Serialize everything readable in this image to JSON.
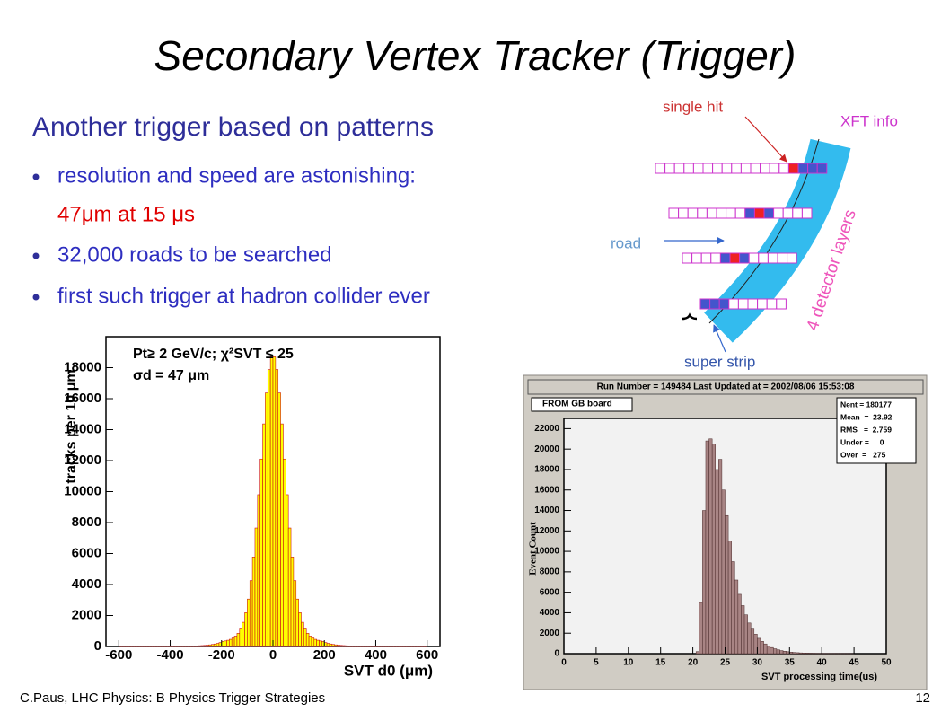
{
  "title": "Secondary Vertex Tracker (Trigger)",
  "heading": "Another trigger based on patterns",
  "bullets": [
    {
      "text": "resolution and speed are astonishing:",
      "highlight": "47μm at 15 μs"
    },
    {
      "text": "32,000 roads to be searched"
    },
    {
      "text": "first such trigger at hadron collider ever"
    }
  ],
  "diagram": {
    "labels": {
      "single_hit": "single hit",
      "xft_info": "XFT info",
      "road": "road",
      "layers": "4 detector layers",
      "super_strip": "super strip"
    }
  },
  "chart_data": [
    {
      "type": "histogram",
      "annotations": [
        "Pt≥ 2 GeV/c; χ²SVT ≤ 25",
        "σd = 47 μm"
      ],
      "x_label": "SVT d0 (μm)",
      "y_label": "tracks per 10 μm",
      "bins": [
        -600,
        -590,
        -580,
        -570,
        -560,
        -550,
        -540,
        -530,
        -520,
        -510,
        -500,
        -490,
        -480,
        -470,
        -460,
        -450,
        -440,
        -430,
        -420,
        -410,
        -400,
        -390,
        -380,
        -370,
        -360,
        -350,
        -340,
        -330,
        -320,
        -310,
        -300,
        -290,
        -280,
        -270,
        -260,
        -250,
        -240,
        -230,
        -220,
        -210,
        -200,
        -190,
        -180,
        -170,
        -160,
        -150,
        -140,
        -130,
        -120,
        -110,
        -100,
        -90,
        -80,
        -70,
        -60,
        -50,
        -40,
        -30,
        -20,
        -10,
        0,
        10,
        20,
        30,
        40,
        50,
        60,
        70,
        80,
        90,
        100,
        110,
        120,
        130,
        140,
        150,
        160,
        170,
        180,
        190,
        200,
        210,
        220,
        230,
        240,
        250,
        260,
        270,
        280,
        290,
        300,
        310,
        320,
        330,
        340,
        350,
        360,
        370,
        380,
        390,
        400,
        410,
        420,
        430,
        440,
        450,
        460,
        470,
        480,
        490,
        500,
        510,
        520,
        530,
        540,
        550,
        560,
        570,
        580,
        590,
        600
      ],
      "counts": [
        6,
        6,
        7,
        7,
        7,
        8,
        8,
        8,
        9,
        9,
        9,
        10,
        10,
        11,
        11,
        12,
        12,
        13,
        14,
        15,
        16,
        17,
        18,
        19,
        21,
        23,
        25,
        28,
        31,
        35,
        40,
        48,
        58,
        70,
        85,
        105,
        130,
        160,
        200,
        250,
        323,
        360,
        400,
        460,
        545,
        670,
        850,
        1130,
        1560,
        2180,
        3060,
        4250,
        5780,
        7650,
        9800,
        12100,
        14370,
        16370,
        17880,
        18700,
        18700,
        17880,
        16370,
        14370,
        12100,
        9800,
        7650,
        5780,
        4250,
        3060,
        2180,
        1560,
        1130,
        850,
        670,
        545,
        460,
        400,
        360,
        323,
        250,
        200,
        160,
        130,
        105,
        85,
        70,
        58,
        48,
        40,
        35,
        31,
        28,
        25,
        23,
        21,
        19,
        18,
        17,
        16,
        15,
        14,
        13,
        12,
        12,
        11,
        11,
        10,
        10,
        9,
        9,
        9,
        8,
        8,
        8,
        7,
        7,
        7,
        6,
        6
      ],
      "color": "#ffff00",
      "edge_color": "#cc1111",
      "xlim": [
        -650,
        650
      ],
      "ylim": [
        0,
        20000
      ],
      "xticks": [
        -600,
        -400,
        -200,
        0,
        200,
        400,
        600
      ],
      "yticks": [
        0,
        2000,
        4000,
        6000,
        8000,
        10000,
        12000,
        14000,
        16000,
        18000
      ]
    },
    {
      "type": "histogram",
      "title": "Run Number = 149484   Last Updated at = 2002/08/06 15:53:08",
      "legend_box": "FROM GB board",
      "stats": [
        "Nent = 180177",
        "Mean  =  23.92",
        "RMS   =  2.759",
        "Under =     0",
        "Over  =   275"
      ],
      "x_label": "SVT processing time(us)",
      "y_label": "Event Count",
      "bins": [
        20,
        20.5,
        21,
        21.5,
        22,
        22.5,
        23,
        23.5,
        24,
        24.5,
        25,
        25.5,
        26,
        26.5,
        27,
        27.5,
        28,
        28.5,
        29,
        29.5,
        30,
        30.5,
        31,
        31.5,
        32,
        32.5,
        33,
        33.5,
        34,
        34.5,
        35,
        35.5,
        36,
        36.5,
        37,
        37.5,
        38,
        38.5,
        39,
        39.5,
        40,
        40.5,
        41,
        41.5,
        42,
        42.5,
        43,
        43.5,
        44,
        44.5,
        45
      ],
      "counts": [
        0,
        200,
        5000,
        14000,
        20800,
        21000,
        20500,
        18000,
        19000,
        16000,
        13500,
        11000,
        9000,
        7200,
        5800,
        4700,
        3800,
        3000,
        2400,
        1900,
        1500,
        1200,
        950,
        750,
        600,
        480,
        380,
        300,
        240,
        190,
        150,
        120,
        95,
        75,
        60,
        48,
        38,
        30,
        24,
        19,
        15,
        12,
        10,
        8,
        6,
        5,
        4,
        3,
        2,
        2
      ],
      "color": "#a88484",
      "edge_color": "#4a2a2a",
      "xlim": [
        0,
        50
      ],
      "ylim": [
        0,
        23000
      ],
      "xticks": [
        0,
        5,
        10,
        15,
        20,
        25,
        30,
        35,
        40,
        45,
        50
      ],
      "yticks": [
        0,
        2000,
        4000,
        6000,
        8000,
        10000,
        12000,
        14000,
        16000,
        18000,
        20000,
        22000
      ]
    }
  ],
  "footer": {
    "text": "C.Paus, LHC Physics: B Physics Trigger Strategies",
    "page": "12"
  }
}
